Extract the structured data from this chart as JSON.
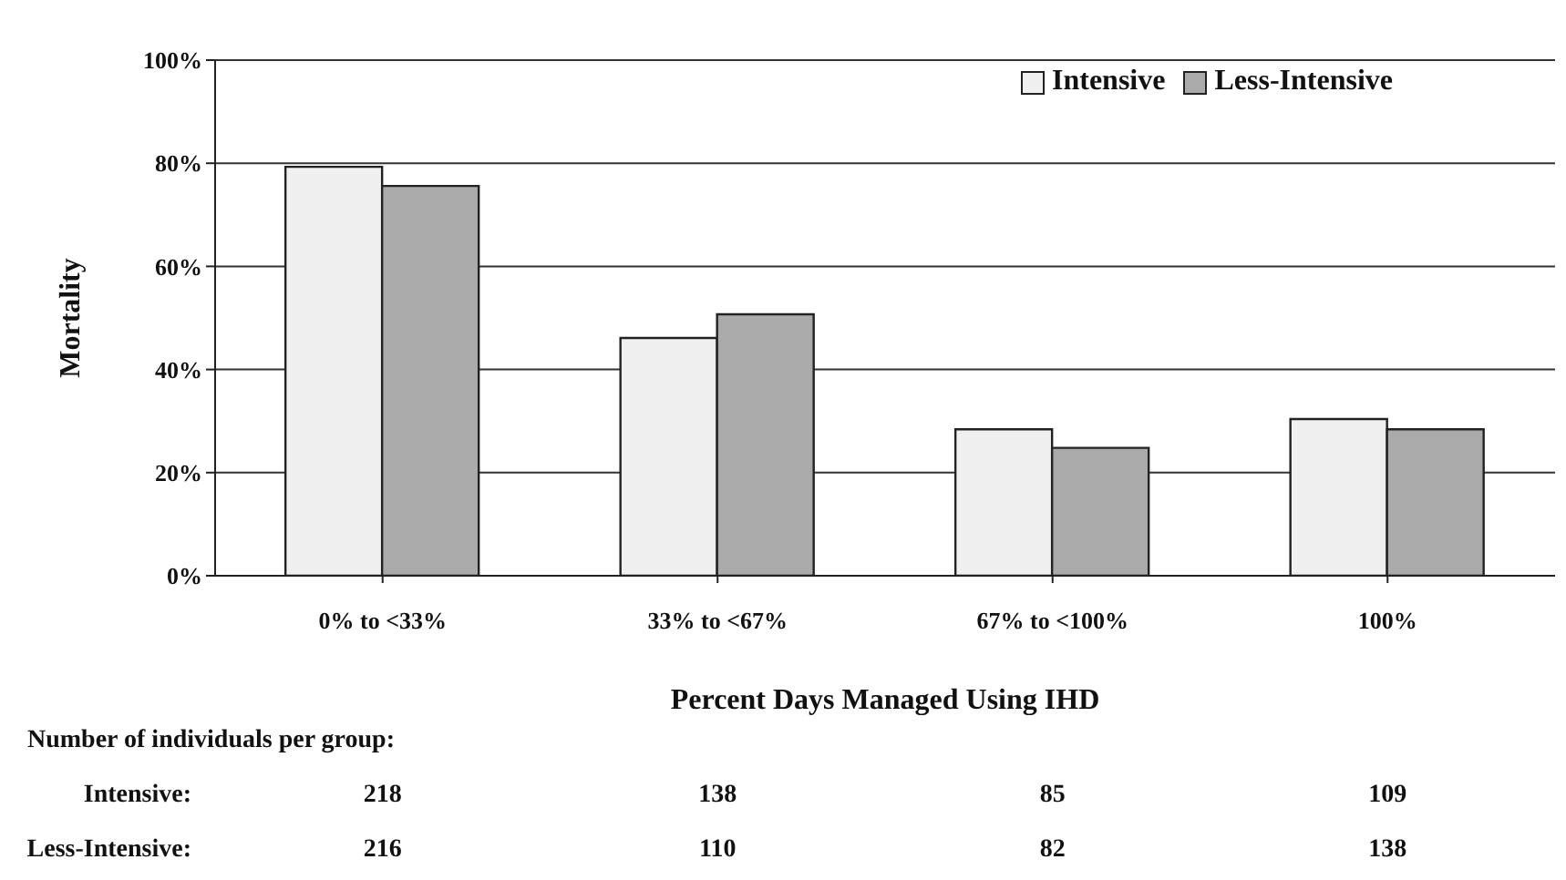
{
  "chart_data": {
    "type": "bar",
    "xlabel": "Percent Days Managed Using IHD",
    "ylabel": "Mortality",
    "categories": [
      "0% to <33%",
      "33% to <67%",
      "67% to <100%",
      "100%"
    ],
    "series": [
      {
        "name": "Intensive",
        "color": "#f0f0f0",
        "values": [
          79.3,
          46.1,
          28.4,
          30.4
        ]
      },
      {
        "name": "Less-Intensive",
        "color": "#aaaaaa",
        "values": [
          75.6,
          50.7,
          24.8,
          28.4
        ]
      }
    ],
    "ylim": [
      0,
      100
    ],
    "yticks": [
      {
        "value": 0,
        "label": "0%"
      },
      {
        "value": 20,
        "label": "20%"
      },
      {
        "value": 40,
        "label": "40%"
      },
      {
        "value": 60,
        "label": "60%"
      },
      {
        "value": 80,
        "label": "80%"
      },
      {
        "value": 100,
        "label": "100%"
      }
    ],
    "grid": "y",
    "legend": "top right",
    "annotations": [
      "Number of individuals per group:",
      "Intensive:",
      "218",
      "138",
      "85",
      "109",
      "Less-Intensive:",
      "216",
      "110",
      "82",
      "138"
    ]
  }
}
